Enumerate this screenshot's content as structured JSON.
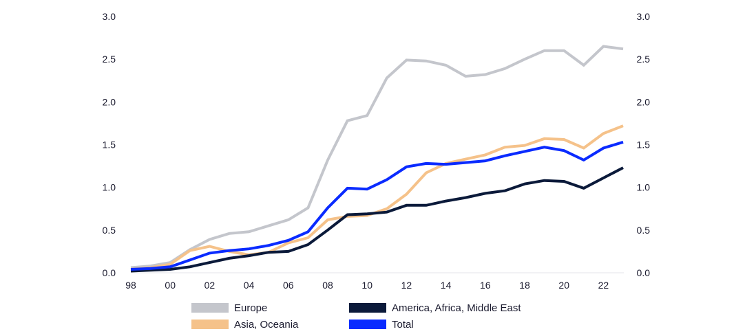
{
  "chart_data": {
    "type": "line",
    "title": "",
    "xlabel": "",
    "ylabel": "",
    "x": [
      1998,
      1999,
      2000,
      2001,
      2002,
      2003,
      2004,
      2005,
      2006,
      2007,
      2008,
      2009,
      2010,
      2011,
      2012,
      2013,
      2014,
      2015,
      2016,
      2017,
      2018,
      2019,
      2020,
      2021,
      2022,
      2023
    ],
    "x_tick_labels": [
      {
        "year": 1998,
        "label": "98"
      },
      {
        "year": 2000,
        "label": "00"
      },
      {
        "year": 2002,
        "label": "02"
      },
      {
        "year": 2004,
        "label": "04"
      },
      {
        "year": 2006,
        "label": "06"
      },
      {
        "year": 2008,
        "label": "08"
      },
      {
        "year": 2010,
        "label": "10"
      },
      {
        "year": 2012,
        "label": "12"
      },
      {
        "year": 2014,
        "label": "14"
      },
      {
        "year": 2016,
        "label": "16"
      },
      {
        "year": 2018,
        "label": "18"
      },
      {
        "year": 2020,
        "label": "20"
      },
      {
        "year": 2022,
        "label": "22"
      }
    ],
    "y_ticks": [
      {
        "value": 0,
        "label": "0.0"
      },
      {
        "value": 0.5,
        "label": "0.5"
      },
      {
        "value": 1,
        "label": "1.0"
      },
      {
        "value": 1.5,
        "label": "1.5"
      },
      {
        "value": 2,
        "label": "2.0"
      },
      {
        "value": 2.5,
        "label": "2.5"
      },
      {
        "value": 3,
        "label": "3.0"
      }
    ],
    "ylim": [
      0,
      3
    ],
    "grid": false,
    "legend_position": "bottom",
    "series": [
      {
        "name": "Europe",
        "color": "#c4c6cc",
        "values": [
          0.06,
          0.08,
          0.12,
          0.27,
          0.39,
          0.46,
          0.48,
          0.55,
          0.62,
          0.76,
          1.32,
          1.78,
          1.84,
          2.28,
          2.49,
          2.48,
          2.43,
          2.3,
          2.32,
          2.39,
          2.5,
          2.6,
          2.6,
          2.43,
          2.65,
          2.62
        ]
      },
      {
        "name": "Asia, Oceania",
        "color": "#f5c28a",
        "values": [
          0.04,
          0.06,
          0.1,
          0.26,
          0.31,
          0.25,
          0.21,
          0.24,
          0.35,
          0.41,
          0.62,
          0.66,
          0.67,
          0.75,
          0.92,
          1.17,
          1.28,
          1.33,
          1.38,
          1.47,
          1.49,
          1.57,
          1.56,
          1.46,
          1.63,
          1.72
        ]
      },
      {
        "name": "America, Africa, Middle East",
        "color": "#0b1a3a",
        "values": [
          0.02,
          0.03,
          0.04,
          0.07,
          0.12,
          0.17,
          0.2,
          0.24,
          0.25,
          0.33,
          0.5,
          0.68,
          0.69,
          0.71,
          0.79,
          0.79,
          0.84,
          0.88,
          0.93,
          0.96,
          1.04,
          1.08,
          1.07,
          0.99,
          1.11,
          1.23
        ]
      },
      {
        "name": "Total",
        "color": "#0a2bff",
        "values": [
          0.04,
          0.05,
          0.07,
          0.15,
          0.23,
          0.26,
          0.28,
          0.32,
          0.38,
          0.48,
          0.76,
          0.99,
          0.98,
          1.09,
          1.24,
          1.28,
          1.27,
          1.29,
          1.31,
          1.37,
          1.42,
          1.47,
          1.43,
          1.32,
          1.46,
          1.53
        ]
      }
    ]
  }
}
